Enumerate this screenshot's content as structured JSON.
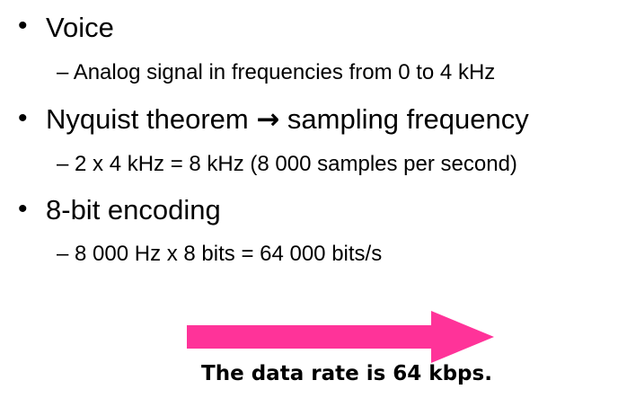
{
  "slide": {
    "items": [
      {
        "text": "Voice",
        "sub": "– Analog signal in frequencies  from 0 to 4 kHz"
      },
      {
        "text_before": "Nyquist theorem ",
        "arrow": "→",
        "text_after": " sampling frequency",
        "sub": "– 2 x 4 kHz = 8 kHz (8 000 samples per second)"
      },
      {
        "text": "8-bit encoding",
        "sub": "– 8 000 Hz x 8 bits = 64 000 bits/s"
      }
    ],
    "bullet_glyph": "•",
    "conclusion": "The data rate is 64 kbps.",
    "arrow_color": "#ff3399"
  }
}
